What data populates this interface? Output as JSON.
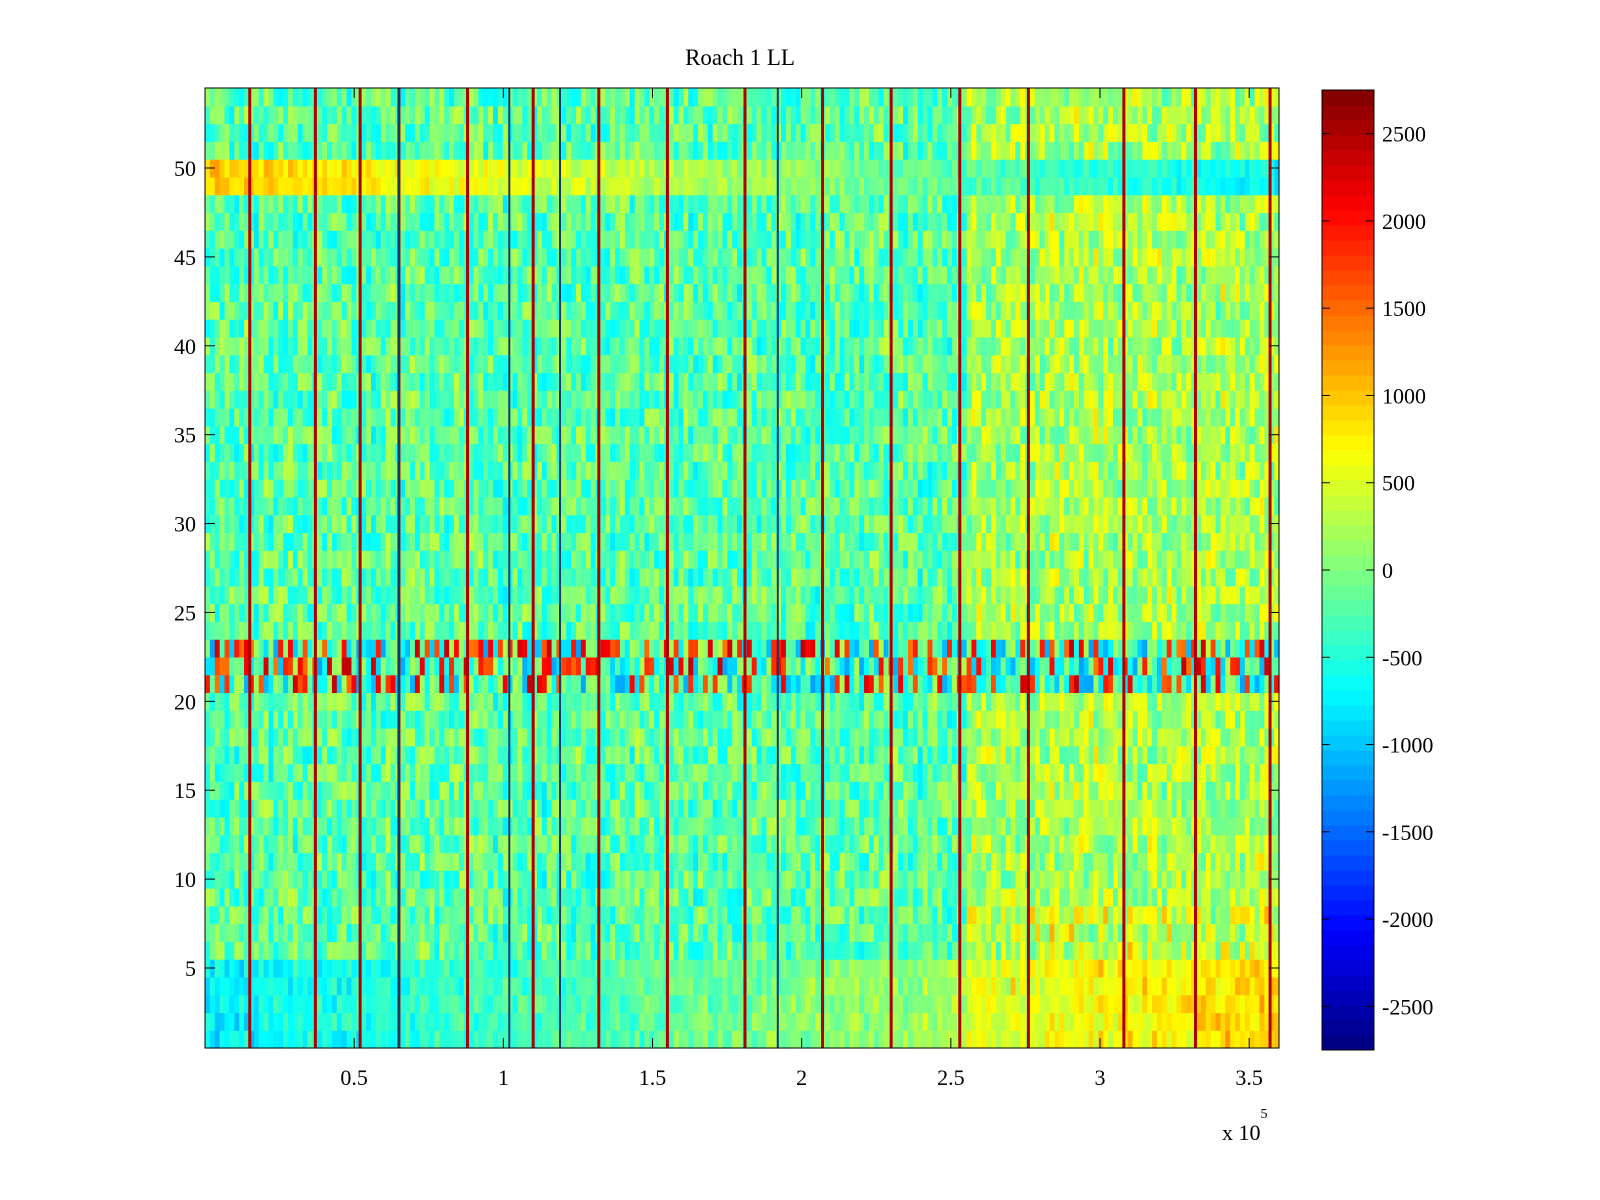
{
  "chart_data": {
    "type": "heatmap",
    "title": "Roach 1 LL",
    "xlabel": "",
    "ylabel": "",
    "x_multiplier_label": "x 10",
    "x_multiplier_exponent": "5",
    "xlim": [
      0,
      3.6
    ],
    "ylim": [
      0.5,
      54.5
    ],
    "rows": 54,
    "x_ticks": [
      0.5,
      1,
      1.5,
      2,
      2.5,
      3,
      3.5
    ],
    "x_tick_labels": [
      "0.5",
      "1",
      "1.5",
      "2",
      "2.5",
      "3",
      "3.5"
    ],
    "y_ticks": [
      5,
      10,
      15,
      20,
      25,
      30,
      35,
      40,
      45,
      50
    ],
    "y_tick_labels": [
      "5",
      "10",
      "15",
      "20",
      "25",
      "30",
      "35",
      "40",
      "45",
      "50"
    ],
    "colorbar": {
      "colormap": "jet",
      "clim": [
        -2750,
        2750
      ],
      "ticks": [
        -2500,
        -2000,
        -1500,
        -1000,
        -500,
        0,
        500,
        1000,
        1500,
        2000,
        2500
      ],
      "tick_labels": [
        "-2500",
        "-2000",
        "-1500",
        "-1000",
        "-500",
        "0",
        "500",
        "1000",
        "1500",
        "2000",
        "2500"
      ],
      "location": "right"
    },
    "grid": false,
    "data_summary": {
      "background_value_range": [
        -600,
        600
      ],
      "high_stripe_x": [
        0.15,
        0.37,
        0.52,
        0.65,
        0.88,
        1.1,
        1.32,
        1.55,
        1.81,
        2.07,
        2.3,
        2.53,
        2.76,
        3.08,
        3.32,
        3.57
      ],
      "high_stripe_value": 2500,
      "dark_stripe_x": [
        0.65,
        1.02,
        1.19,
        1.92
      ],
      "bright_band_rows": [
        21,
        23
      ],
      "bright_band_mixed_values": [
        -1200,
        2400
      ],
      "rows_49_50_value_at_left": 1000,
      "rows_49_50_value_at_right": -700,
      "rows_1_5_value_at_left": -1100,
      "rows_1_5_value_at_right": 1200,
      "warmer_region_x": [
        2.55,
        3.6
      ]
    }
  }
}
